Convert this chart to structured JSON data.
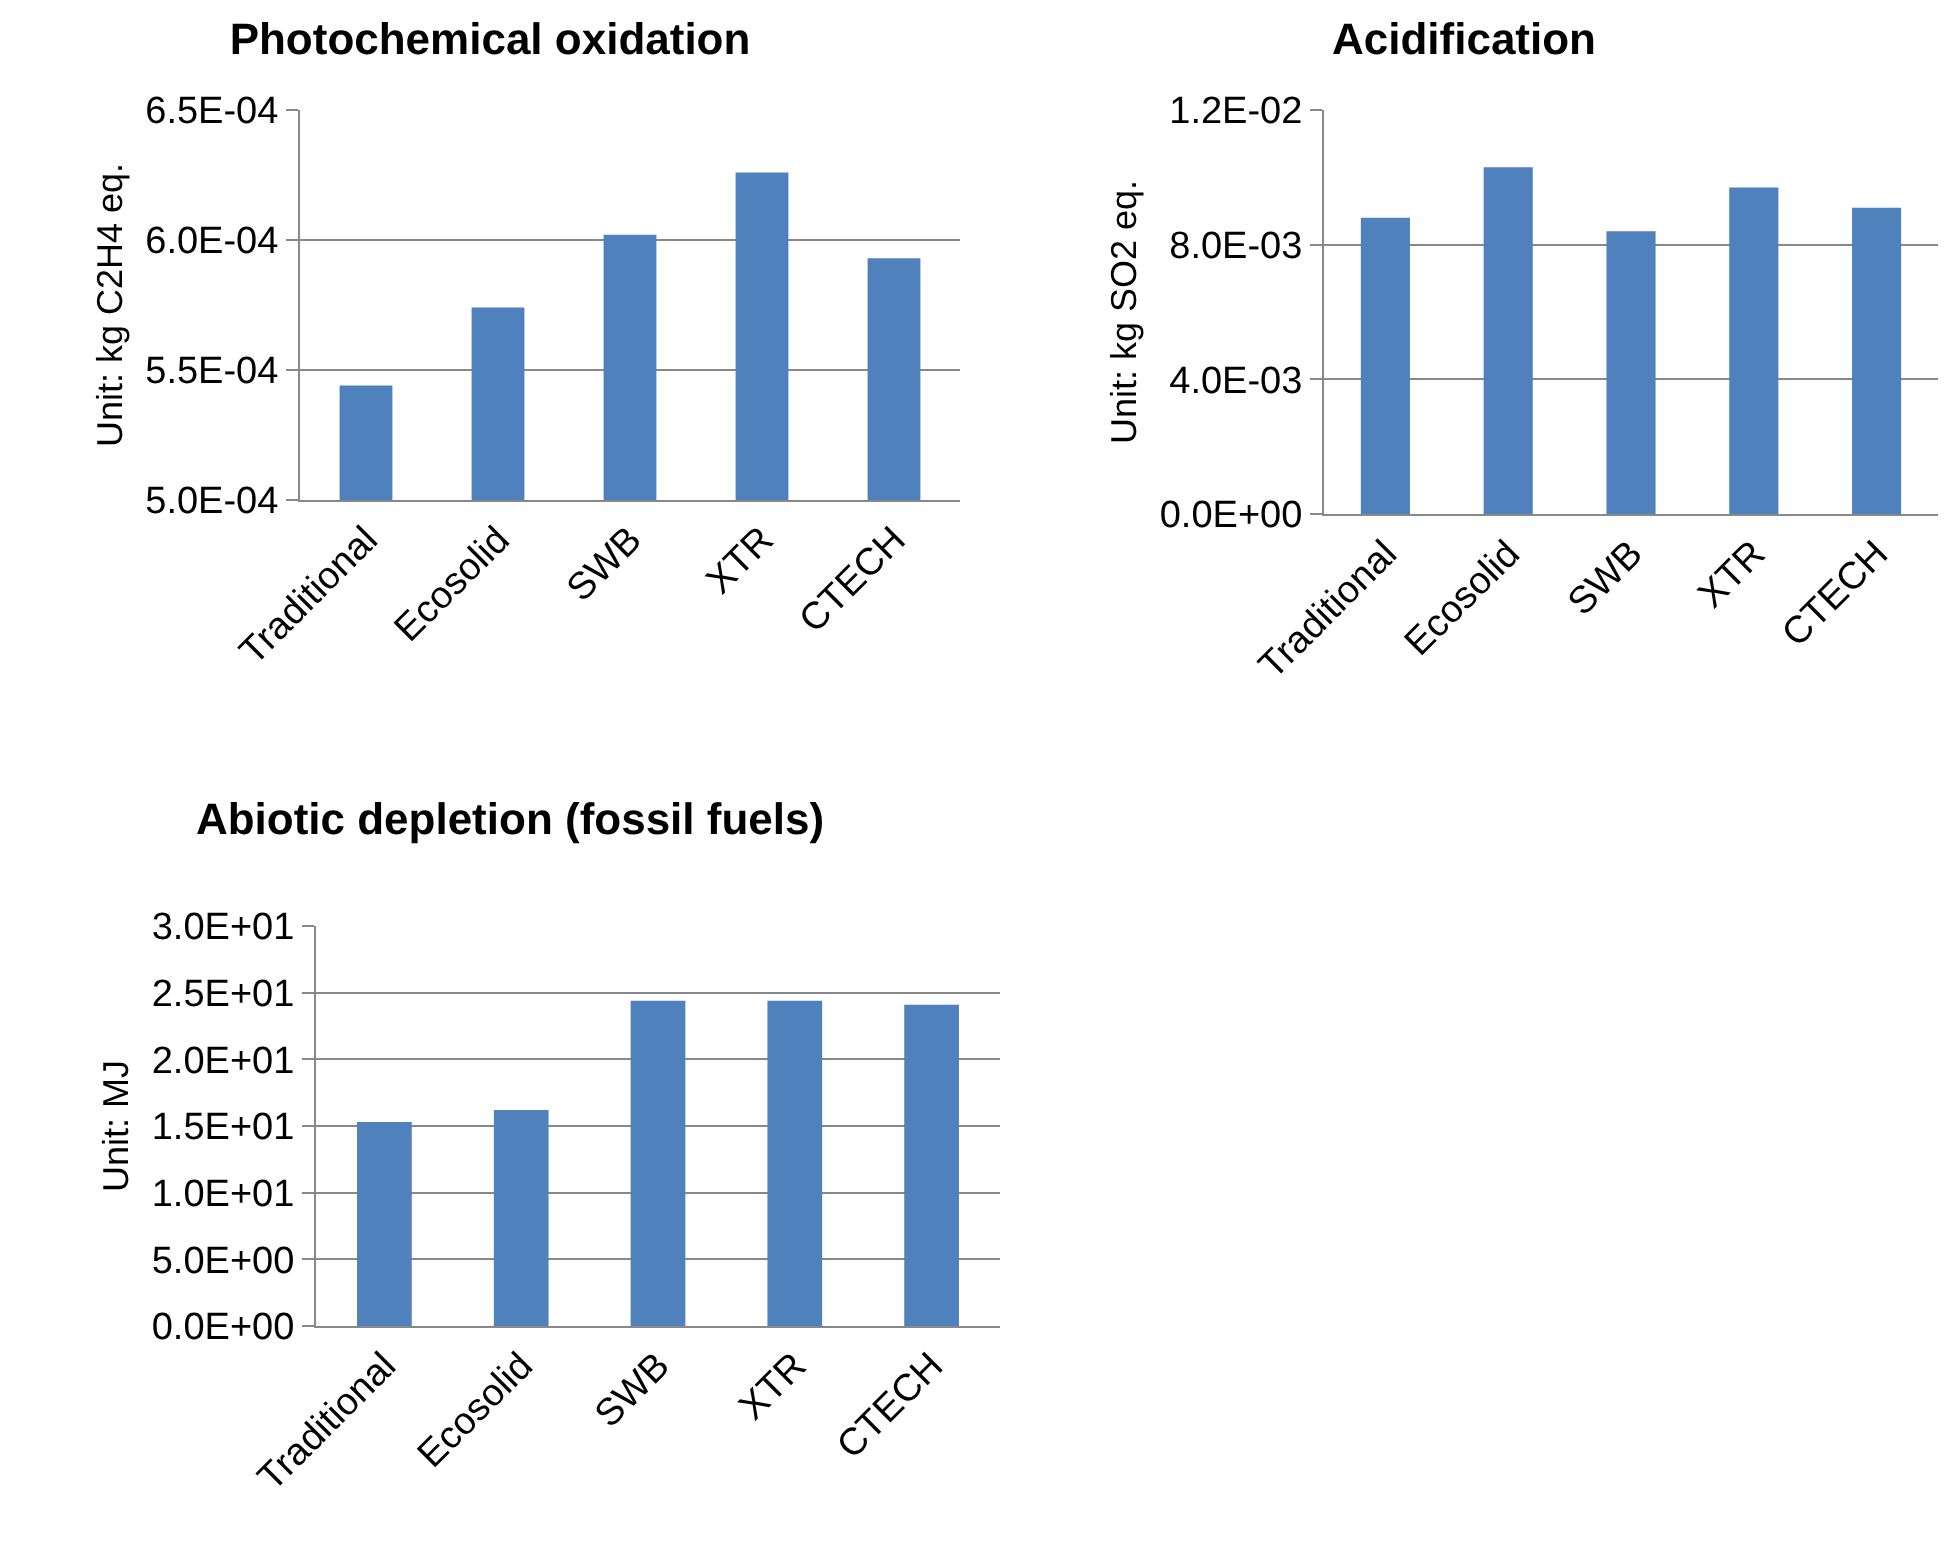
{
  "chart_data": [
    {
      "type": "bar",
      "title": "Photochemical oxidation",
      "ylabel": "Unit: kg C2H4 eq.",
      "categories": [
        "Traditional",
        "Ecosolid",
        "SWB",
        "XTR",
        "CTECH"
      ],
      "values": [
        0.000544,
        0.000574,
        0.000602,
        0.000626,
        0.000593
      ],
      "color": "#4f81bd",
      "ylim": [
        0.0005,
        0.00065
      ],
      "yticks": [
        {
          "value": 0.0005,
          "label": "5.0E-04"
        },
        {
          "value": 0.00055,
          "label": "5.5E-04"
        },
        {
          "value": 0.0006,
          "label": "6.0E-04"
        },
        {
          "value": 0.00065,
          "label": "6.5E-04"
        }
      ],
      "grid": "y"
    },
    {
      "type": "bar",
      "title": "Acidification",
      "ylabel": "Unit: kg SO2 eq.",
      "categories": [
        "Traditional",
        "Ecosolid",
        "SWB",
        "XTR",
        "CTECH"
      ],
      "values": [
        0.0088,
        0.0103,
        0.0084,
        0.0097,
        0.0091
      ],
      "color": "#4f81bd",
      "ylim": [
        0,
        0.012
      ],
      "yticks": [
        {
          "value": 0,
          "label": "0.0E+00"
        },
        {
          "value": 0.004,
          "label": "4.0E-03"
        },
        {
          "value": 0.008,
          "label": "8.0E-03"
        },
        {
          "value": 0.012,
          "label": "1.2E-02"
        }
      ],
      "grid": "y"
    },
    {
      "type": "bar",
      "title": "Abiotic depletion (fossil fuels)",
      "ylabel": "Unit: MJ",
      "categories": [
        "Traditional",
        "Ecosolid",
        "SWB",
        "XTR",
        "CTECH"
      ],
      "values": [
        15.3,
        16.2,
        24.4,
        24.4,
        24.1
      ],
      "color": "#4f81bd",
      "ylim": [
        0,
        30
      ],
      "yticks": [
        {
          "value": 0,
          "label": "0.0E+00"
        },
        {
          "value": 5,
          "label": "5.0E+00"
        },
        {
          "value": 10,
          "label": "1.0E+01"
        },
        {
          "value": 15,
          "label": "1.5E+01"
        },
        {
          "value": 20,
          "label": "2.0E+01"
        },
        {
          "value": 25,
          "label": "2.5E+01"
        },
        {
          "value": 30,
          "label": "3.0E+01"
        }
      ],
      "grid": "y"
    }
  ]
}
